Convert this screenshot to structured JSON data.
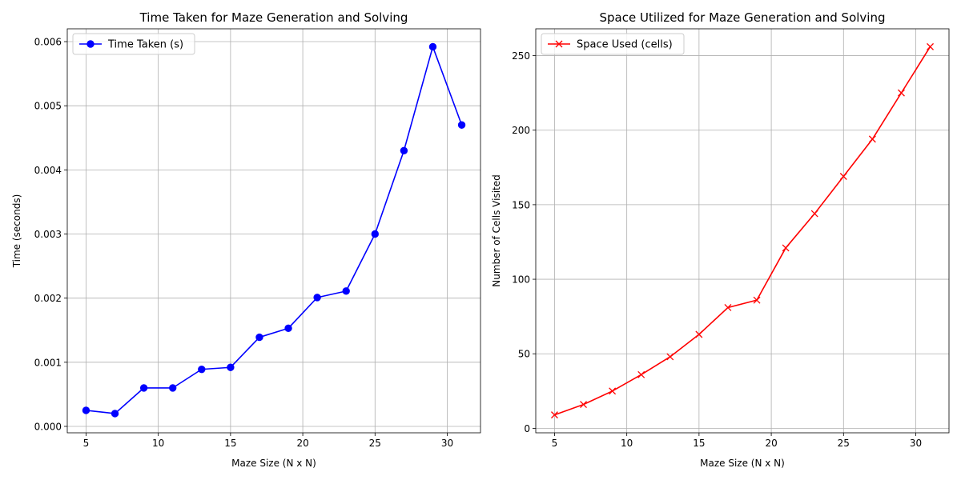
{
  "chart_data": [
    {
      "type": "line",
      "title": "Time Taken for Maze Generation and Solving",
      "xlabel": "Maze Size (N x N)",
      "ylabel": "Time (seconds)",
      "x": [
        5,
        7,
        9,
        11,
        13,
        15,
        17,
        19,
        21,
        23,
        25,
        27,
        29,
        31
      ],
      "series": [
        {
          "name": "Time Taken (s)",
          "values": [
            0.00025,
            0.0002,
            0.0006,
            0.0006,
            0.00089,
            0.00092,
            0.00139,
            0.00153,
            0.00201,
            0.00211,
            0.003,
            0.0043,
            0.00592,
            0.0047
          ],
          "color": "#0000ff",
          "marker": "circle"
        }
      ],
      "xlim": [
        3.7,
        32.3
      ],
      "ylim": [
        -0.0001,
        0.0062
      ],
      "xticks": [
        5,
        10,
        15,
        20,
        25,
        30
      ],
      "xtick_labels": [
        "5",
        "10",
        "15",
        "20",
        "25",
        "30"
      ],
      "yticks": [
        0,
        0.001,
        0.002,
        0.003,
        0.004,
        0.005,
        0.006
      ],
      "ytick_labels": [
        "0.000",
        "0.001",
        "0.002",
        "0.003",
        "0.004",
        "0.005",
        "0.006"
      ],
      "grid": true,
      "legend": "upper-left"
    },
    {
      "type": "line",
      "title": "Space Utilized for Maze Generation and Solving",
      "xlabel": "Maze Size (N x N)",
      "ylabel": "Number of Cells Visited",
      "x": [
        5,
        7,
        9,
        11,
        13,
        15,
        17,
        19,
        21,
        23,
        25,
        27,
        29,
        31
      ],
      "series": [
        {
          "name": "Space Used (cells)",
          "values": [
            9,
            16,
            25,
            36,
            48,
            63,
            81,
            86,
            121,
            144,
            169,
            194,
            225,
            256
          ],
          "color": "#ff0000",
          "marker": "x"
        }
      ],
      "xlim": [
        3.7,
        32.3
      ],
      "ylim": [
        -3,
        268
      ],
      "xticks": [
        5,
        10,
        15,
        20,
        25,
        30
      ],
      "xtick_labels": [
        "5",
        "10",
        "15",
        "20",
        "25",
        "30"
      ],
      "yticks": [
        0,
        50,
        100,
        150,
        200,
        250
      ],
      "ytick_labels": [
        "0",
        "50",
        "100",
        "150",
        "200",
        "250"
      ],
      "grid": true,
      "legend": "upper-left"
    }
  ]
}
